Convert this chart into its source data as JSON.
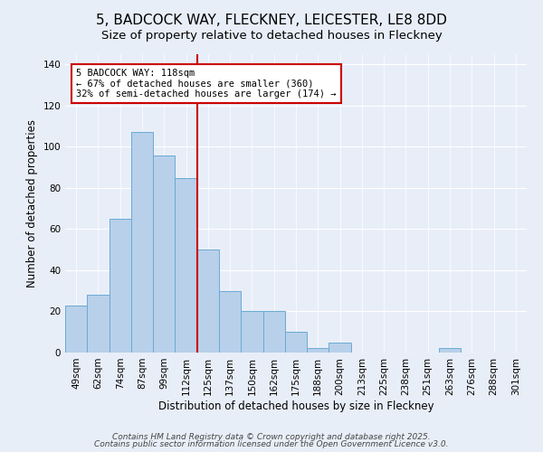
{
  "title": "5, BADCOCK WAY, FLECKNEY, LEICESTER, LE8 8DD",
  "subtitle": "Size of property relative to detached houses in Fleckney",
  "xlabel": "Distribution of detached houses by size in Fleckney",
  "ylabel": "Number of detached properties",
  "footer_lines": [
    "Contains HM Land Registry data © Crown copyright and database right 2025.",
    "Contains public sector information licensed under the Open Government Licence v3.0."
  ],
  "bar_labels": [
    "49sqm",
    "62sqm",
    "74sqm",
    "87sqm",
    "99sqm",
    "112sqm",
    "125sqm",
    "137sqm",
    "150sqm",
    "162sqm",
    "175sqm",
    "188sqm",
    "200sqm",
    "213sqm",
    "225sqm",
    "238sqm",
    "251sqm",
    "263sqm",
    "276sqm",
    "288sqm",
    "301sqm"
  ],
  "bar_values": [
    23,
    28,
    65,
    107,
    96,
    85,
    50,
    30,
    20,
    20,
    10,
    2,
    5,
    0,
    0,
    0,
    0,
    2,
    0,
    0,
    0
  ],
  "bar_color": "#b8d0ea",
  "bar_edgecolor": "#6aaad4",
  "bar_width": 1.0,
  "ylim": [
    0,
    145
  ],
  "yticks": [
    0,
    20,
    40,
    60,
    80,
    100,
    120,
    140
  ],
  "vline_index": 6,
  "vline_color": "#cc0000",
  "annotation_text": "5 BADCOCK WAY: 118sqm\n← 67% of detached houses are smaller (360)\n32% of semi-detached houses are larger (174) →",
  "annotation_box_color": "#ffffff",
  "annotation_box_edgecolor": "#cc0000",
  "background_color": "#e8eef8",
  "title_fontsize": 11,
  "subtitle_fontsize": 9.5,
  "axis_label_fontsize": 8.5,
  "tick_fontsize": 7.5,
  "annotation_fontsize": 7.5,
  "footer_fontsize": 6.5
}
